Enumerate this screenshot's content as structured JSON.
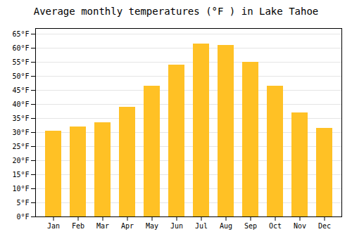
{
  "chart_data": {
    "type": "bar",
    "title": "Average monthly temperatures (°F ) in Lake Tahoe",
    "categories": [
      "Jan",
      "Feb",
      "Mar",
      "Apr",
      "May",
      "Jun",
      "Jul",
      "Aug",
      "Sep",
      "Oct",
      "Nov",
      "Dec"
    ],
    "values": [
      30.5,
      32.0,
      33.5,
      39.0,
      46.5,
      54.0,
      61.5,
      61.0,
      55.0,
      46.5,
      37.0,
      31.5
    ],
    "color": "#FFC125",
    "ylim": [
      0,
      67
    ],
    "yticks": [
      {
        "value": 0,
        "label": "0°F"
      },
      {
        "value": 5,
        "label": "5°F"
      },
      {
        "value": 10,
        "label": "10°F"
      },
      {
        "value": 15,
        "label": "15°F"
      },
      {
        "value": 20,
        "label": "20°F"
      },
      {
        "value": 25,
        "label": "25°F"
      },
      {
        "value": 30,
        "label": "30°F"
      },
      {
        "value": 35,
        "label": "35°F"
      },
      {
        "value": 40,
        "label": "40°F"
      },
      {
        "value": 45,
        "label": "45°F"
      },
      {
        "value": 50,
        "label": "50°F"
      },
      {
        "value": 55,
        "label": "55°F"
      },
      {
        "value": 60,
        "label": "60°F"
      },
      {
        "value": 65,
        "label": "65°F"
      }
    ],
    "grid": true
  }
}
